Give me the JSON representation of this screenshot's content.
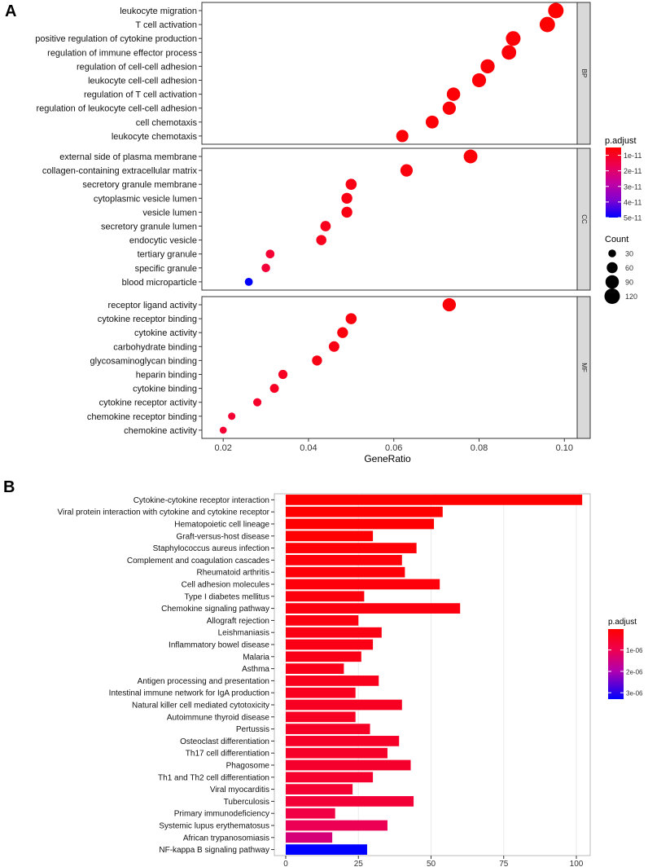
{
  "panel_labels": [
    "A",
    "B"
  ],
  "colors": {
    "low_padj": "#ff0000",
    "high_padj": "#0000ff",
    "panel_bg": "#ffffff",
    "grid": "#ebebeb",
    "strip_bg": "#d9d9d9",
    "border": "#333333"
  },
  "chart_data": [
    {
      "panel": "A",
      "type": "scatter",
      "xlabel": "GeneRatio",
      "ylabel": "",
      "xlim": [
        0.015,
        0.103
      ],
      "xticks": [
        0.02,
        0.04,
        0.06,
        0.08,
        0.1
      ],
      "xtick_labels": [
        "0.02",
        "0.04",
        "0.06",
        "0.08",
        "0.10"
      ],
      "facets": [
        {
          "name": "BP",
          "terms": [
            {
              "label": "leukocyte migration",
              "x": 0.098,
              "count": 120,
              "padj": 5e-12
            },
            {
              "label": "T cell activation",
              "x": 0.096,
              "count": 118,
              "padj": 5e-12
            },
            {
              "label": "positive regulation of cytokine production",
              "x": 0.088,
              "count": 108,
              "padj": 6e-12
            },
            {
              "label": "regulation of immune effector process",
              "x": 0.087,
              "count": 106,
              "padj": 6e-12
            },
            {
              "label": "regulation of cell-cell adhesion",
              "x": 0.082,
              "count": 100,
              "padj": 6e-12
            },
            {
              "label": "leukocyte cell-cell adhesion",
              "x": 0.08,
              "count": 98,
              "padj": 6e-12
            },
            {
              "label": "regulation of T cell activation",
              "x": 0.074,
              "count": 90,
              "padj": 6e-12
            },
            {
              "label": "regulation of leukocyte cell-cell adhesion",
              "x": 0.073,
              "count": 88,
              "padj": 6e-12
            },
            {
              "label": "cell chemotaxis",
              "x": 0.069,
              "count": 84,
              "padj": 6e-12
            },
            {
              "label": "leukocyte chemotaxis",
              "x": 0.062,
              "count": 75,
              "padj": 6e-12
            }
          ]
        },
        {
          "name": "CC",
          "terms": [
            {
              "label": "external side of plasma membrane",
              "x": 0.078,
              "count": 95,
              "padj": 6e-12
            },
            {
              "label": "collagen-containing extracellular matrix",
              "x": 0.063,
              "count": 77,
              "padj": 7e-12
            },
            {
              "label": "secretory granule membrane",
              "x": 0.05,
              "count": 61,
              "padj": 8e-12
            },
            {
              "label": "cytoplasmic vesicle lumen",
              "x": 0.049,
              "count": 60,
              "padj": 8e-12
            },
            {
              "label": "vesicle lumen",
              "x": 0.049,
              "count": 60,
              "padj": 8e-12
            },
            {
              "label": "secretory granule lumen",
              "x": 0.044,
              "count": 54,
              "padj": 9e-12
            },
            {
              "label": "endocytic vesicle",
              "x": 0.043,
              "count": 52,
              "padj": 9e-12
            },
            {
              "label": "tertiary granule",
              "x": 0.031,
              "count": 38,
              "padj": 1.2e-11
            },
            {
              "label": "specific granule",
              "x": 0.03,
              "count": 37,
              "padj": 1.3e-11
            },
            {
              "label": "blood microparticle",
              "x": 0.026,
              "count": 32,
              "padj": 5e-11
            }
          ]
        },
        {
          "name": "MF",
          "terms": [
            {
              "label": "receptor ligand activity",
              "x": 0.073,
              "count": 89,
              "padj": 6e-12
            },
            {
              "label": "cytokine receptor binding",
              "x": 0.05,
              "count": 61,
              "padj": 7e-12
            },
            {
              "label": "cytokine activity",
              "x": 0.048,
              "count": 59,
              "padj": 7e-12
            },
            {
              "label": "carbohydrate binding",
              "x": 0.046,
              "count": 56,
              "padj": 8e-12
            },
            {
              "label": "glycosaminoglycan binding",
              "x": 0.042,
              "count": 51,
              "padj": 8e-12
            },
            {
              "label": "heparin binding",
              "x": 0.034,
              "count": 42,
              "padj": 1e-11
            },
            {
              "label": "cytokine binding",
              "x": 0.032,
              "count": 40,
              "padj": 1e-11
            },
            {
              "label": "cytokine receptor activity",
              "x": 0.028,
              "count": 34,
              "padj": 1.1e-11
            },
            {
              "label": "chemokine receptor binding",
              "x": 0.022,
              "count": 27,
              "padj": 1.2e-11
            },
            {
              "label": "chemokine activity",
              "x": 0.02,
              "count": 25,
              "padj": 1.2e-11
            }
          ]
        }
      ],
      "color_legend": {
        "title": "p.adjust",
        "range": [
          5e-12,
          5e-11
        ],
        "labels": [
          "1e-11",
          "2e-11",
          "3e-11",
          "4e-11",
          "5e-11"
        ],
        "values": [
          1e-11,
          2e-11,
          3e-11,
          4e-11,
          5e-11
        ]
      },
      "size_legend": {
        "title": "Count",
        "labels": [
          "30",
          "60",
          "90",
          "120"
        ],
        "values": [
          30,
          60,
          90,
          120
        ]
      }
    },
    {
      "panel": "B",
      "type": "bar",
      "orientation": "horizontal",
      "xlim": [
        0,
        105
      ],
      "xticks": [
        0,
        25,
        50,
        75,
        100
      ],
      "xtick_labels": [
        "0",
        "25",
        "50",
        "75",
        "100"
      ],
      "categories": [
        "Cytokine-cytokine receptor interaction",
        "Viral protein interaction with cytokine and cytokine receptor",
        "Hematopoietic cell lineage",
        "Graft-versus-host disease",
        "Staphylococcus aureus infection",
        "Complement and coagulation cascades",
        "Rheumatoid arthritis",
        "Cell adhesion molecules",
        "Type I diabetes mellitus",
        "Chemokine signaling pathway",
        "Allograft rejection",
        "Leishmaniasis",
        "Inflammatory bowel disease",
        "Malaria",
        "Asthma",
        "Antigen processing and presentation",
        "Intestinal immune network for IgA production",
        "Natural killer cell mediated cytotoxicity",
        "Autoimmune thyroid disease",
        "Pertussis",
        "Osteoclast differentiation",
        "Th17 cell differentiation",
        "Phagosome",
        "Th1 and Th2 cell differentiation",
        "Viral myocarditis",
        "Tuberculosis",
        "Primary immunodeficiency",
        "Systemic lupus erythematosus",
        "African trypanosomiasis",
        "NF-kappa B signaling pathway"
      ],
      "values": [
        102,
        54,
        51,
        30,
        45,
        40,
        41,
        53,
        27,
        60,
        25,
        33,
        30,
        26,
        20,
        32,
        24,
        40,
        24,
        29,
        39,
        35,
        43,
        30,
        23,
        44,
        17,
        35,
        16,
        28
      ],
      "padj": [
        2e-08,
        3e-08,
        4e-08,
        6e-08,
        8e-08,
        1e-07,
        1.2e-07,
        1.5e-07,
        1.8e-07,
        2e-07,
        2.2e-07,
        2.5e-07,
        2.7e-07,
        3e-07,
        3.3e-07,
        3.6e-07,
        3.9e-07,
        4.2e-07,
        4.5e-07,
        4.8e-07,
        5.1e-07,
        5.4e-07,
        5.7e-07,
        6e-07,
        6.5e-07,
        7e-07,
        8.5e-07,
        1.05e-06,
        1.4e-06,
        3.3e-06
      ],
      "color_legend": {
        "title": "p.adjust",
        "range": [
          2e-08,
          3.3e-06
        ],
        "labels": [
          "1e-06",
          "2e-06",
          "3e-06"
        ],
        "values": [
          1e-06,
          2e-06,
          3e-06
        ]
      }
    }
  ]
}
